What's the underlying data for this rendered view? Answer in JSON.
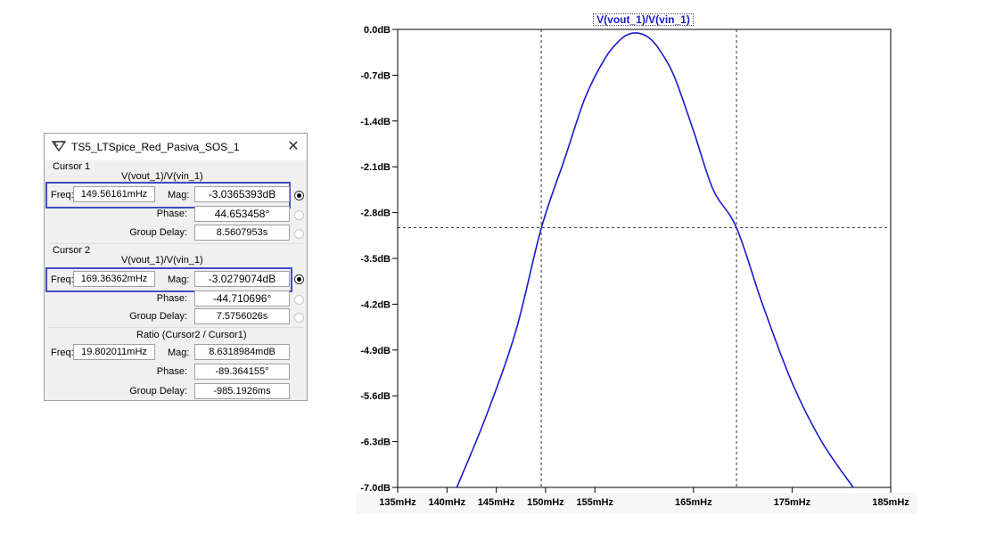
{
  "dialog": {
    "title": "TS5_LTSpice_Red_Pasiva_SOS_1",
    "cursor1": {
      "header": "Cursor 1",
      "expr": "V(vout_1)/V(vin_1)",
      "freq_label": "Freq:",
      "freq": "149.56161mHz",
      "mag_label": "Mag:",
      "mag": "-3.0365393dB",
      "phase_label": "Phase:",
      "phase": "44.653458°",
      "gd_label": "Group Delay:",
      "gd": "8.5607953s"
    },
    "cursor2": {
      "header": "Cursor 2",
      "expr": "V(vout_1)/V(vin_1)",
      "freq_label": "Freq:",
      "freq": "169.36362mHz",
      "mag_label": "Mag:",
      "mag": "-3.0279074dB",
      "phase_label": "Phase:",
      "phase": "-44.710696°",
      "gd_label": "Group Delay:",
      "gd": "7.5756026s"
    },
    "ratio": {
      "header": "Ratio (Cursor2 / Cursor1)",
      "freq_label": "Freq:",
      "freq": "19.802011mHz",
      "mag_label": "Mag:",
      "mag": "8.6318984mdB",
      "phase_label": "Phase:",
      "phase": "-89.364155°",
      "gd_label": "Group Delay:",
      "gd": "-985.1926ms"
    }
  },
  "chart_data": {
    "type": "line",
    "title": "V(vout_1)/V(vin_1)",
    "xlabel": "",
    "ylabel": "",
    "x_unit": "mHz",
    "y_unit": "dB",
    "xlim": [
      135,
      185
    ],
    "ylim": [
      -7.0,
      0.0
    ],
    "x_ticks": [
      135,
      140,
      145,
      150,
      155,
      165,
      175,
      185
    ],
    "x_tick_labels": [
      "135mHz",
      "140mHz",
      "145mHz",
      "150mHz",
      "155mHz",
      "165mHz",
      "175mHz",
      "185mHz"
    ],
    "y_ticks": [
      0.0,
      -0.7,
      -1.4,
      -2.1,
      -2.8,
      -3.5,
      -4.2,
      -4.9,
      -5.6,
      -6.3,
      -7.0
    ],
    "y_tick_labels": [
      "0.0dB",
      "-0.7dB",
      "-1.4dB",
      "-2.1dB",
      "-2.8dB",
      "-3.5dB",
      "-4.2dB",
      "-4.9dB",
      "-5.6dB",
      "-6.3dB",
      "-7.0dB"
    ],
    "line_color": "#1a1acc",
    "series": [
      {
        "x": [
          141.0,
          144.0,
          147.0,
          149.56,
          152.0,
          154.0,
          156.0,
          157.5,
          158.5,
          159.5,
          160.5,
          161.5,
          163.0,
          165.0,
          167.0,
          169.36,
          172.0,
          175.0,
          178.0,
          181.2
        ],
        "values": [
          -7.0,
          -5.9,
          -4.6,
          -3.04,
          -1.95,
          -1.05,
          -0.45,
          -0.17,
          -0.07,
          -0.06,
          -0.13,
          -0.3,
          -0.7,
          -1.55,
          -2.45,
          -3.03,
          -4.2,
          -5.4,
          -6.3,
          -7.0
        ]
      }
    ],
    "cursors": [
      {
        "x": 149.56161,
        "y": -3.0365393
      },
      {
        "x": 169.36362,
        "y": -3.0279074
      }
    ],
    "grid": false,
    "accent_color": "#3c4ec0"
  }
}
